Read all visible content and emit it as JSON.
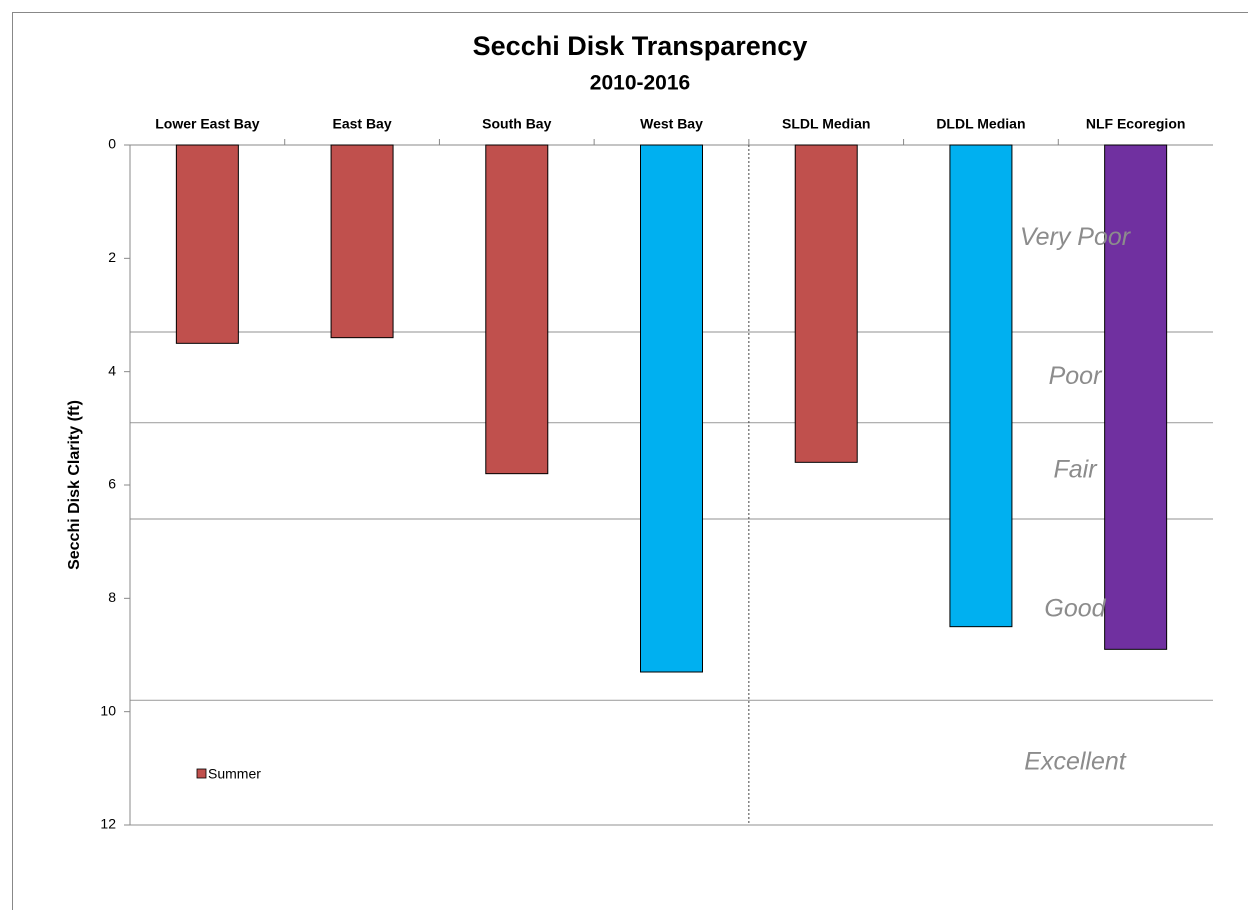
{
  "chart_data": {
    "type": "bar",
    "title": "Secchi Disk Transparency",
    "subtitle": "2010-2016",
    "y_label": "Secchi Disk Clarity (ft)",
    "categories": [
      "Lower East Bay",
      "East Bay",
      "South Bay",
      "West Bay",
      "SLDL Median",
      "DLDL Median",
      "NLF Ecoregion"
    ],
    "series": [
      {
        "name": "Summer",
        "color": "#c0504d",
        "values": [
          3.5,
          3.4,
          5.8,
          9.3,
          5.6,
          8.5,
          8.9
        ],
        "colors": [
          "#c0504d",
          "#c0504d",
          "#c0504d",
          "#00b0f0",
          "#c0504d",
          "#00b0f0",
          "#7030a0"
        ]
      }
    ],
    "ylim": [
      0,
      12
    ],
    "yticks": [
      0,
      2,
      4,
      6,
      8,
      10,
      12
    ],
    "y_reversed": true,
    "zones": [
      {
        "name": "Very Poor",
        "range": [
          0,
          3.3
        ]
      },
      {
        "name": "Poor",
        "range": [
          3.3,
          4.9
        ]
      },
      {
        "name": "Fair",
        "range": [
          4.9,
          6.6
        ]
      },
      {
        "name": "Good",
        "range": [
          6.6,
          9.8
        ]
      },
      {
        "name": "Excellent",
        "range": [
          9.8,
          12
        ]
      }
    ],
    "legend": "lower left"
  }
}
